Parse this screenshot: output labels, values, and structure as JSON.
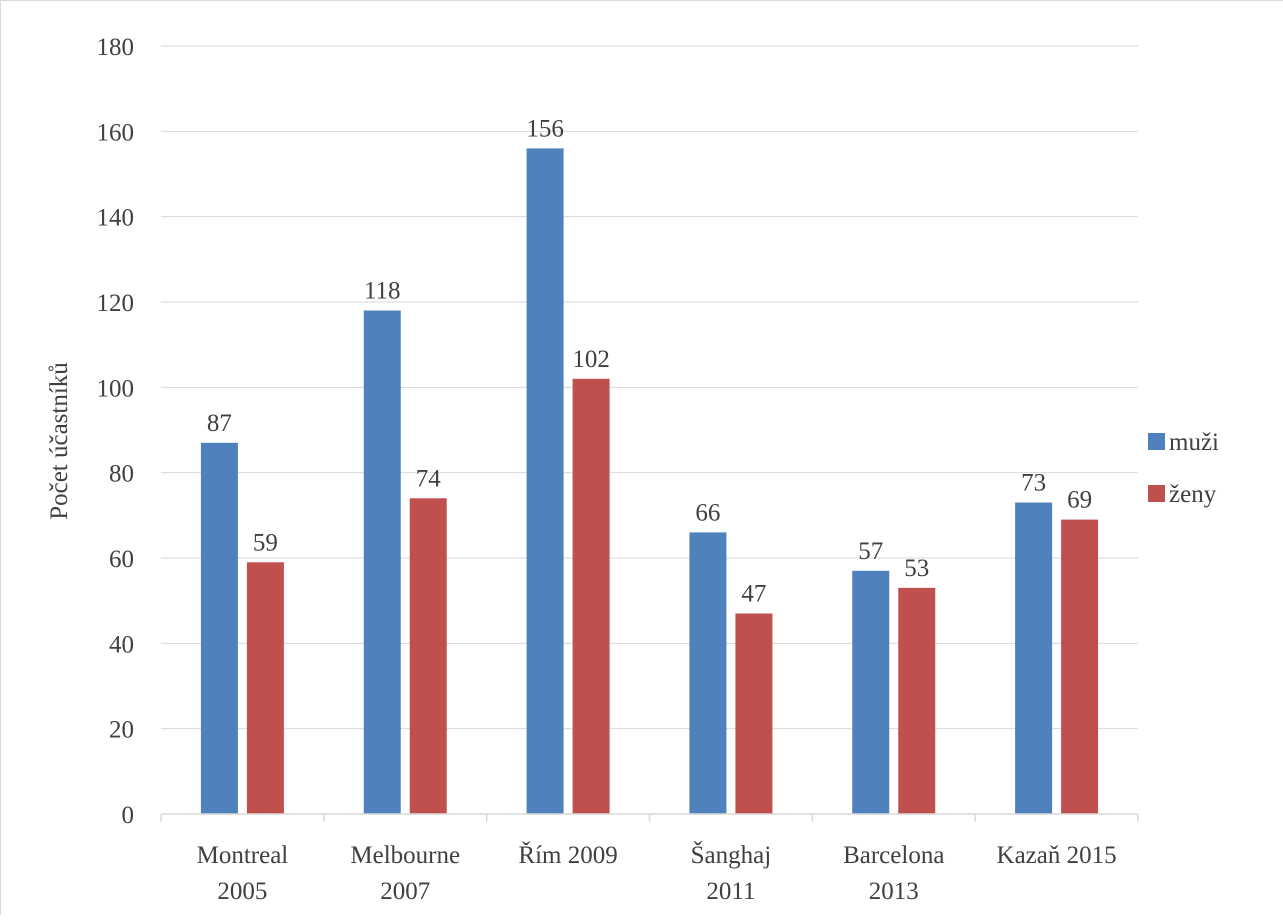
{
  "chart_data": {
    "type": "bar",
    "ylabel": "Počet účastníků",
    "ylim": [
      0,
      180
    ],
    "yticks": [
      0,
      20,
      40,
      60,
      80,
      100,
      120,
      140,
      160,
      180
    ],
    "categories": [
      [
        "Montreal",
        "2005"
      ],
      [
        "Melbourne",
        "2007"
      ],
      [
        "Řím 2009"
      ],
      [
        "Šanghaj",
        "2011"
      ],
      [
        "Barcelona",
        "2013"
      ],
      [
        "Kazaň 2015"
      ]
    ],
    "series": [
      {
        "name": "muži",
        "color": "#4f81bd",
        "values": [
          87,
          118,
          156,
          66,
          57,
          73
        ]
      },
      {
        "name": "ženy",
        "color": "#c0504d",
        "values": [
          59,
          74,
          102,
          47,
          53,
          69
        ]
      }
    ],
    "data_labels": true,
    "grid": true,
    "legend_position": "right"
  }
}
